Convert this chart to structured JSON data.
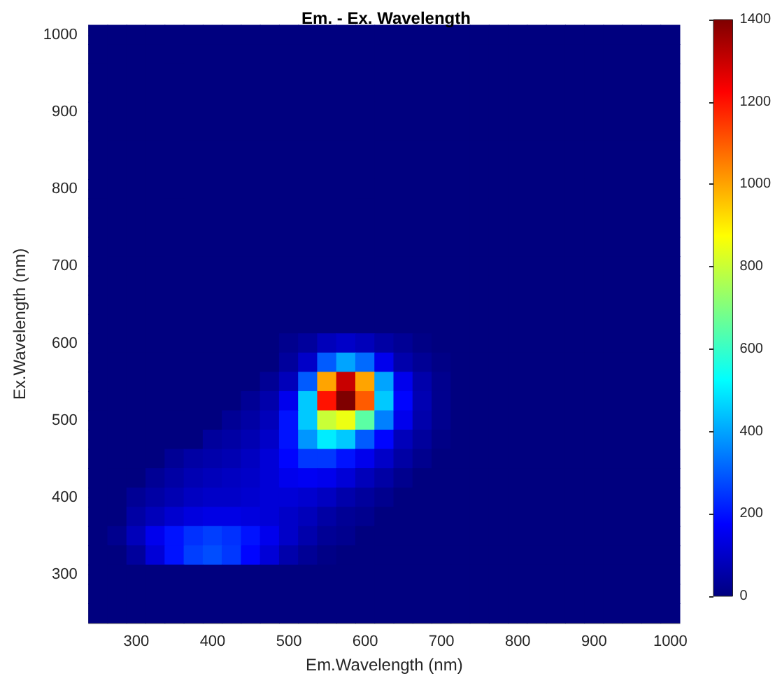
{
  "chart_data": {
    "type": "heatmap",
    "title": "Em. - Ex. Wavelength",
    "xlabel": "Em.Wavelength (nm)",
    "ylabel": "Ex.Wavelength (nm)",
    "categories": [
      null,
      null,
      "300",
      null,
      null,
      null,
      "400",
      null,
      null,
      null,
      "500",
      null,
      null,
      null,
      "600",
      null,
      null,
      null,
      "700",
      null,
      null,
      null,
      "800",
      null,
      null,
      null,
      "900",
      null,
      null,
      null,
      "1000"
    ],
    "y_categories": [
      "1000",
      null,
      null,
      null,
      "900",
      null,
      null,
      null,
      "800",
      null,
      null,
      null,
      "700",
      null,
      null,
      null,
      "600",
      null,
      null,
      null,
      "500",
      null,
      null,
      null,
      "400",
      null,
      null,
      null,
      "300",
      null,
      null
    ],
    "cells": [
      [
        0,
        0,
        0,
        0,
        0,
        0,
        0,
        0,
        0,
        0,
        0,
        0,
        0,
        0,
        0,
        0,
        0,
        0,
        0,
        0,
        0,
        0,
        0,
        0,
        0,
        0,
        0,
        0,
        0,
        0,
        0
      ],
      [
        0,
        0,
        0,
        0,
        0,
        0,
        0,
        0,
        0,
        0,
        0,
        0,
        0,
        0,
        0,
        0,
        0,
        0,
        0,
        0,
        0,
        0,
        0,
        0,
        0,
        0,
        0,
        0,
        0,
        0,
        0
      ],
      [
        0,
        0,
        0,
        0,
        0,
        0,
        0,
        0,
        0,
        0,
        0,
        0,
        0,
        0,
        0,
        0,
        0,
        0,
        0,
        0,
        0,
        0,
        0,
        0,
        0,
        0,
        0,
        0,
        0,
        0,
        0
      ],
      [
        0,
        0,
        0,
        0,
        0,
        0,
        0,
        0,
        0,
        0,
        0,
        0,
        0,
        0,
        0,
        0,
        0,
        0,
        0,
        0,
        0,
        0,
        0,
        0,
        0,
        0,
        0,
        0,
        0,
        0,
        0
      ],
      [
        0,
        0,
        0,
        0,
        0,
        0,
        0,
        0,
        0,
        0,
        0,
        0,
        0,
        0,
        0,
        0,
        0,
        0,
        0,
        0,
        0,
        0,
        0,
        0,
        0,
        0,
        0,
        0,
        0,
        0,
        0
      ],
      [
        0,
        0,
        0,
        0,
        0,
        0,
        0,
        0,
        0,
        0,
        0,
        0,
        0,
        0,
        0,
        0,
        0,
        0,
        0,
        0,
        0,
        0,
        0,
        0,
        0,
        0,
        0,
        0,
        0,
        0,
        0
      ],
      [
        0,
        0,
        0,
        0,
        0,
        0,
        0,
        0,
        0,
        0,
        0,
        0,
        0,
        0,
        0,
        0,
        0,
        0,
        0,
        0,
        0,
        0,
        0,
        0,
        0,
        0,
        0,
        0,
        0,
        0,
        0
      ],
      [
        0,
        0,
        0,
        0,
        0,
        0,
        0,
        0,
        0,
        0,
        0,
        0,
        0,
        0,
        0,
        0,
        0,
        0,
        0,
        0,
        0,
        0,
        0,
        0,
        0,
        0,
        0,
        0,
        0,
        0,
        0
      ],
      [
        0,
        0,
        0,
        0,
        0,
        0,
        0,
        0,
        0,
        0,
        0,
        0,
        0,
        0,
        0,
        0,
        0,
        0,
        0,
        0,
        0,
        0,
        0,
        0,
        0,
        0,
        0,
        0,
        0,
        0,
        0
      ],
      [
        0,
        0,
        0,
        0,
        0,
        0,
        0,
        0,
        0,
        0,
        0,
        0,
        0,
        0,
        0,
        0,
        0,
        0,
        0,
        0,
        0,
        0,
        0,
        0,
        0,
        0,
        0,
        0,
        0,
        0,
        0
      ],
      [
        0,
        0,
        0,
        0,
        0,
        0,
        0,
        0,
        0,
        0,
        0,
        0,
        0,
        0,
        0,
        0,
        0,
        0,
        0,
        0,
        0,
        0,
        0,
        0,
        0,
        0,
        0,
        0,
        0,
        0,
        0
      ],
      [
        0,
        0,
        0,
        0,
        0,
        0,
        0,
        0,
        0,
        0,
        0,
        0,
        0,
        0,
        0,
        0,
        0,
        0,
        0,
        0,
        0,
        0,
        0,
        0,
        0,
        0,
        0,
        0,
        0,
        0,
        0
      ],
      [
        0,
        0,
        0,
        0,
        0,
        0,
        0,
        0,
        0,
        0,
        0,
        0,
        0,
        0,
        0,
        0,
        0,
        0,
        0,
        0,
        0,
        0,
        0,
        0,
        0,
        0,
        0,
        0,
        0,
        0,
        0
      ],
      [
        0,
        0,
        0,
        0,
        0,
        0,
        0,
        0,
        0,
        0,
        0,
        0,
        0,
        0,
        0,
        0,
        0,
        0,
        0,
        0,
        0,
        0,
        0,
        0,
        0,
        0,
        0,
        0,
        0,
        0,
        0
      ],
      [
        0,
        0,
        0,
        0,
        0,
        0,
        0,
        0,
        0,
        0,
        0,
        0,
        0,
        0,
        0,
        0,
        0,
        0,
        0,
        0,
        0,
        0,
        0,
        0,
        0,
        0,
        0,
        0,
        0,
        0,
        0
      ],
      [
        0,
        0,
        0,
        0,
        0,
        0,
        0,
        0,
        0,
        0,
        0,
        0,
        0,
        0,
        0,
        0,
        0,
        0,
        0,
        0,
        0,
        0,
        0,
        0,
        0,
        0,
        0,
        0,
        0,
        0,
        0
      ],
      [
        0,
        0,
        0,
        0,
        0,
        0,
        0,
        0,
        0,
        0,
        20,
        40,
        80,
        100,
        80,
        50,
        30,
        10,
        0,
        0,
        0,
        0,
        0,
        0,
        0,
        0,
        0,
        0,
        0,
        0,
        0
      ],
      [
        0,
        0,
        0,
        0,
        0,
        0,
        0,
        0,
        0,
        0,
        40,
        100,
        300,
        400,
        320,
        150,
        60,
        30,
        10,
        0,
        0,
        0,
        0,
        0,
        0,
        0,
        0,
        0,
        0,
        0,
        0
      ],
      [
        0,
        0,
        0,
        0,
        0,
        0,
        0,
        0,
        0,
        30,
        80,
        300,
        1000,
        1300,
        1000,
        400,
        150,
        60,
        20,
        0,
        0,
        0,
        0,
        0,
        0,
        0,
        0,
        0,
        0,
        0,
        0
      ],
      [
        0,
        0,
        0,
        0,
        0,
        0,
        0,
        0,
        30,
        60,
        150,
        450,
        1200,
        1400,
        1100,
        450,
        180,
        70,
        20,
        0,
        0,
        0,
        0,
        0,
        0,
        0,
        0,
        0,
        0,
        0,
        0
      ],
      [
        0,
        0,
        0,
        0,
        0,
        0,
        0,
        30,
        50,
        80,
        200,
        450,
        800,
        850,
        650,
        350,
        150,
        60,
        20,
        0,
        0,
        0,
        0,
        0,
        0,
        0,
        0,
        0,
        0,
        0,
        0
      ],
      [
        0,
        0,
        0,
        0,
        0,
        0,
        40,
        50,
        70,
        100,
        200,
        380,
        500,
        450,
        300,
        180,
        80,
        40,
        10,
        0,
        0,
        0,
        0,
        0,
        0,
        0,
        0,
        0,
        0,
        0,
        0
      ],
      [
        0,
        0,
        0,
        0,
        30,
        50,
        60,
        70,
        90,
        120,
        180,
        250,
        250,
        200,
        150,
        100,
        50,
        20,
        0,
        0,
        0,
        0,
        0,
        0,
        0,
        0,
        0,
        0,
        0,
        0,
        0
      ],
      [
        0,
        0,
        0,
        30,
        50,
        70,
        80,
        90,
        100,
        120,
        150,
        160,
        150,
        120,
        80,
        50,
        20,
        0,
        0,
        0,
        0,
        0,
        0,
        0,
        0,
        0,
        0,
        0,
        0,
        0,
        0
      ],
      [
        0,
        0,
        30,
        50,
        70,
        90,
        100,
        100,
        110,
        120,
        120,
        110,
        90,
        60,
        40,
        20,
        0,
        0,
        0,
        0,
        0,
        0,
        0,
        0,
        0,
        0,
        0,
        0,
        0,
        0,
        0
      ],
      [
        0,
        0,
        50,
        80,
        110,
        130,
        140,
        140,
        130,
        120,
        100,
        80,
        50,
        30,
        20,
        0,
        0,
        0,
        0,
        0,
        0,
        0,
        0,
        0,
        0,
        0,
        0,
        0,
        0,
        0,
        0
      ],
      [
        0,
        20,
        80,
        150,
        200,
        240,
        260,
        240,
        200,
        150,
        100,
        60,
        30,
        20,
        0,
        0,
        0,
        0,
        0,
        0,
        0,
        0,
        0,
        0,
        0,
        0,
        0,
        0,
        0,
        0,
        0
      ],
      [
        0,
        0,
        40,
        120,
        200,
        260,
        280,
        250,
        180,
        120,
        60,
        30,
        10,
        0,
        0,
        0,
        0,
        0,
        0,
        0,
        0,
        0,
        0,
        0,
        0,
        0,
        0,
        0,
        0,
        0,
        0
      ],
      [
        0,
        0,
        0,
        0,
        0,
        0,
        0,
        0,
        0,
        0,
        0,
        0,
        0,
        0,
        0,
        0,
        0,
        0,
        0,
        0,
        0,
        0,
        0,
        0,
        0,
        0,
        0,
        0,
        0,
        0,
        0
      ],
      [
        0,
        0,
        0,
        0,
        0,
        0,
        0,
        0,
        0,
        0,
        0,
        0,
        0,
        0,
        0,
        0,
        0,
        0,
        0,
        0,
        0,
        0,
        0,
        0,
        0,
        0,
        0,
        0,
        0,
        0,
        0
      ],
      [
        0,
        0,
        0,
        0,
        0,
        0,
        0,
        0,
        0,
        0,
        0,
        0,
        0,
        0,
        0,
        0,
        0,
        0,
        0,
        0,
        0,
        0,
        0,
        0,
        0,
        0,
        0,
        0,
        0,
        0,
        0
      ]
    ],
    "clim": [
      0,
      1400
    ],
    "cticks": [
      0,
      200,
      400,
      600,
      800,
      1000,
      1200,
      1400
    ]
  }
}
